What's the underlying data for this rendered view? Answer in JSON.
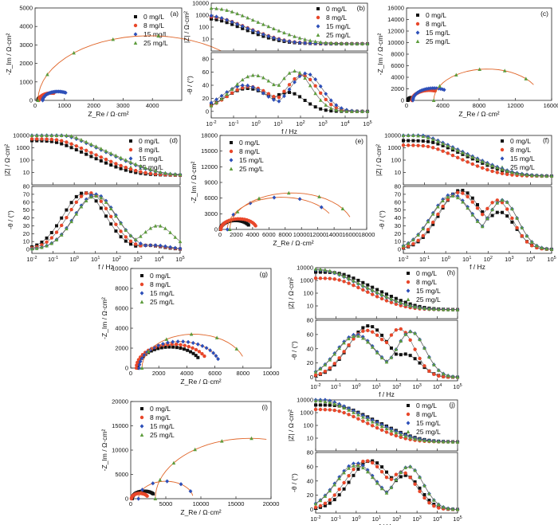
{
  "figure": {
    "legend_labels": [
      "0 mg/L",
      "8 mg/L",
      "15 mg/L",
      "25 mg/L"
    ],
    "series_colors": [
      "#111111",
      "#e8472a",
      "#2d4fb8",
      "#5d9c3c"
    ],
    "fit_color": "#e0662a"
  },
  "chart_data": [
    {
      "panel_label": "(a)",
      "type": "scatter",
      "xlabel": "Z_Re / Ω·cm²",
      "ylabel": "-Z_Im / Ω·cm²",
      "xlim": [
        0,
        5000
      ],
      "ylim": [
        0,
        5000
      ],
      "xticks": [
        0,
        1000,
        2000,
        3000,
        4000
      ],
      "yticks": [
        0,
        1000,
        2000,
        3000,
        4000,
        5000
      ],
      "legend_position": "top-right",
      "series": [
        {
          "name": "0 mg/L",
          "center": 350,
          "radius": 250,
          "end_angle_deg": 80
        },
        {
          "name": "8 mg/L",
          "center": 560,
          "radius": 430,
          "end_angle_deg": 100
        },
        {
          "name": "15 mg/L",
          "center": 780,
          "radius": 520,
          "end_angle_deg": 120
        },
        {
          "name": "25 mg/L",
          "center": 3900,
          "radius": 3800,
          "end_angle_deg": 130
        }
      ]
    },
    {
      "panel_label": "(b)",
      "type": "line",
      "xlabel": "f / Hz",
      "ylabel_top": "|Z| / Ω·cm²",
      "ylabel_bottom": "-θ / (°)",
      "xlim_log": [
        -2,
        5
      ],
      "zlim_log": [
        0,
        4
      ],
      "phase_lim": [
        -10,
        90
      ],
      "xticks_log": [
        -2,
        -1,
        0,
        1,
        2,
        3,
        4,
        5
      ],
      "zticks_log": [
        1,
        2,
        3,
        4
      ],
      "phase_ticks": [
        0,
        20,
        40,
        60,
        80
      ],
      "legend_position": "top-right",
      "series": [
        {
          "name": "0 mg/L",
          "Rs": 4,
          "Rp": 550,
          "f1": 0.4,
          "f2": 30,
          "p1": 35,
          "p2": 28
        },
        {
          "name": "8 mg/L",
          "Rs": 4,
          "Rp": 800,
          "f1": 0.5,
          "f2": 120,
          "p1": 38,
          "p2": 55
        },
        {
          "name": "15 mg/L",
          "Rs": 4,
          "Rp": 1100,
          "f1": 0.3,
          "f2": 180,
          "p1": 40,
          "p2": 58
        },
        {
          "name": "25 mg/L",
          "Rs": 4,
          "Rp": 4000,
          "f1": 0.8,
          "f2": 60,
          "p1": 55,
          "p2": 60
        }
      ]
    },
    {
      "panel_label": "(c)",
      "type": "scatter",
      "xlabel": "Z_Re / Ω·cm²",
      "ylabel": "-Z_Im / Ω·cm²",
      "xlim": [
        0,
        16000
      ],
      "ylim": [
        0,
        16000
      ],
      "xticks": [
        0,
        4000,
        8000,
        12000,
        16000
      ],
      "yticks": [
        0,
        2000,
        4000,
        6000,
        8000,
        10000,
        12000,
        14000,
        16000
      ],
      "legend_position": "top-left",
      "series": [
        {
          "name": "0 mg/L",
          "center": 700,
          "radius": 550,
          "end_angle_deg": 80
        },
        {
          "name": "8 mg/L",
          "center": 2500,
          "radius": 1900,
          "end_angle_deg": 110
        },
        {
          "name": "15 mg/L",
          "center": 3000,
          "radius": 2300,
          "end_angle_deg": 120
        },
        {
          "name": "25 mg/L",
          "center": 8900,
          "radius": 5900,
          "end_angle_deg": 150
        }
      ]
    },
    {
      "panel_label": "(d)",
      "type": "line",
      "xlabel": "f / Hz",
      "ylabel_top": "|Z| / Ω·cm²",
      "ylabel_bottom": "-θ / (°)",
      "xlim_log": [
        -2,
        5
      ],
      "zlim_log": [
        0,
        4
      ],
      "phase_lim": [
        -5,
        80
      ],
      "xticks_log": [
        -2,
        -1,
        0,
        1,
        2,
        3,
        4,
        5
      ],
      "zticks_log": [
        1,
        2,
        3,
        4
      ],
      "phase_ticks": [
        0,
        10,
        20,
        30,
        40,
        50,
        60,
        70,
        80
      ],
      "legend_position": "top-right",
      "series": [
        {
          "name": "0 mg/L",
          "Rs": 6,
          "Rp": 3800,
          "f1": 3,
          "f2": 3000,
          "p1": 72,
          "p2": 5
        },
        {
          "name": "8 mg/L",
          "Rs": 6,
          "Rp": 5200,
          "f1": 5,
          "f2": 4000,
          "p1": 72,
          "p2": 5
        },
        {
          "name": "15 mg/L",
          "Rs": 6,
          "Rp": 12000,
          "f1": 10,
          "f2": 6000,
          "p1": 70,
          "p2": 5
        },
        {
          "name": "25 mg/L",
          "Rs": 6,
          "Rp": 15000,
          "f1": 10,
          "f2": 9000,
          "p1": 68,
          "p2": 30
        }
      ]
    },
    {
      "panel_label": "(e)",
      "type": "scatter",
      "xlabel": "Z_Re / Ω·cm²",
      "ylabel": "-Z_Im / Ω·cm²",
      "xlim": [
        0,
        18000
      ],
      "ylim": [
        0,
        18000
      ],
      "xticks": [
        0,
        2000,
        4000,
        6000,
        8000,
        10000,
        12000,
        14000,
        16000,
        18000
      ],
      "yticks": [
        0,
        3000,
        6000,
        9000,
        12000,
        15000,
        18000
      ],
      "legend_position": "top-left",
      "series": [
        {
          "name": "0 mg/L",
          "center": 1900,
          "radius": 1850,
          "end_angle_deg": 150
        },
        {
          "name": "8 mg/L",
          "center": 2300,
          "radius": 2200,
          "end_angle_deg": 160
        },
        {
          "name": "15 mg/L",
          "center": 7600,
          "radius": 6700,
          "end_angle_deg": 150
        },
        {
          "name": "25 mg/L",
          "center": 8800,
          "radius": 7600,
          "end_angle_deg": 160
        }
      ]
    },
    {
      "panel_label": "(f)",
      "type": "line",
      "xlabel": "f / Hz",
      "ylabel_top": "|Z| / Ω·cm²",
      "ylabel_bottom": "-θ / (°)",
      "xlim_log": [
        -2,
        5
      ],
      "zlim_log": [
        0,
        4
      ],
      "phase_lim": [
        -5,
        80
      ],
      "xticks_log": [
        -2,
        -1,
        0,
        1,
        2,
        3,
        4,
        5
      ],
      "zticks_log": [
        1,
        2,
        3,
        4
      ],
      "phase_ticks": [
        0,
        10,
        20,
        30,
        40,
        50,
        60,
        70,
        80
      ],
      "legend_position": "top-right",
      "series": [
        {
          "name": "0 mg/L",
          "Rs": 5,
          "Rp": 3800,
          "f1": 5,
          "f2": 400,
          "p1": 75,
          "p2": 45
        },
        {
          "name": "8 mg/L",
          "Rs": 5,
          "Rp": 1600,
          "f1": 4,
          "f2": 300,
          "p1": 72,
          "p2": 60
        },
        {
          "name": "15 mg/L",
          "Rs": 5,
          "Rp": 13000,
          "f1": 2,
          "f2": 500,
          "p1": 70,
          "p2": 62
        },
        {
          "name": "25 mg/L",
          "Rs": 5,
          "Rp": 11000,
          "f1": 2,
          "f2": 500,
          "p1": 68,
          "p2": 62
        }
      ]
    },
    {
      "panel_label": "(g)",
      "type": "scatter",
      "xlabel": "Z_Re / Ω·cm²",
      "ylabel": "-Z_Im / Ω·cm²",
      "xlim": [
        0,
        10000
      ],
      "ylim": [
        0,
        10000
      ],
      "xticks": [
        0,
        2000,
        4000,
        6000,
        8000,
        10000
      ],
      "yticks": [
        0,
        2000,
        4000,
        6000,
        8000,
        10000
      ],
      "legend_position": "top-left",
      "series": [
        {
          "name": "0 mg/L",
          "center": 2800,
          "radius": 2300,
          "end_angle_deg": 150
        },
        {
          "name": "8 mg/L",
          "center": 3000,
          "radius": 2600,
          "end_angle_deg": 150
        },
        {
          "name": "15 mg/L",
          "center": 3500,
          "radius": 2900,
          "end_angle_deg": 160
        },
        {
          "name": "25 mg/L",
          "center": 4500,
          "radius": 3700,
          "end_angle_deg": 160
        }
      ]
    },
    {
      "panel_label": "(h)",
      "type": "line",
      "xlabel": "f / Hz",
      "ylabel_top": "|Z| / Ω·cm²",
      "ylabel_bottom": "-θ / (°)",
      "xlim_log": [
        -2,
        5
      ],
      "zlim_log": [
        0,
        4
      ],
      "phase_lim": [
        -5,
        80
      ],
      "xticks_log": [
        -2,
        -1,
        0,
        1,
        2,
        3,
        4,
        5
      ],
      "zticks_log": [
        1,
        2,
        3,
        4
      ],
      "phase_ticks": [
        0,
        20,
        40,
        60,
        80
      ],
      "legend_position": "top-right",
      "series": [
        {
          "name": "0 mg/L",
          "Rs": 5,
          "Rp": 4500,
          "f1": 4,
          "f2": 300,
          "p1": 72,
          "p2": 30
        },
        {
          "name": "8 mg/L",
          "Rs": 5,
          "Rp": 1500,
          "f1": 3,
          "f2": 150,
          "p1": 65,
          "p2": 65
        },
        {
          "name": "15 mg/L",
          "Rs": 5,
          "Rp": 7000,
          "f1": 1,
          "f2": 500,
          "p1": 60,
          "p2": 64
        },
        {
          "name": "25 mg/L",
          "Rs": 5,
          "Rp": 8000,
          "f1": 1,
          "f2": 500,
          "p1": 58,
          "p2": 64
        }
      ]
    },
    {
      "panel_label": "(i)",
      "type": "scatter",
      "xlabel": "Z_Re / Ω·cm²",
      "ylabel": "-Z_Im / Ω·cm²",
      "xlim": [
        0,
        20000
      ],
      "ylim": [
        0,
        20000
      ],
      "xticks": [
        0,
        5000,
        10000,
        15000,
        20000
      ],
      "yticks": [
        0,
        5000,
        10000,
        15000,
        20000
      ],
      "legend_position": "top-left",
      "series": [
        {
          "name": "0 mg/L",
          "center": 1900,
          "radius": 1700,
          "end_angle_deg": 140
        },
        {
          "name": "8 mg/L",
          "center": 1300,
          "radius": 1200,
          "end_angle_deg": 150
        },
        {
          "name": "15 mg/L",
          "center": 5000,
          "radius": 3900,
          "end_angle_deg": 170
        },
        {
          "name": "25 mg/L",
          "center": 17000,
          "radius": 13500,
          "end_angle_deg": 100
        }
      ]
    },
    {
      "panel_label": "(j)",
      "type": "line",
      "xlabel": "f / Hz",
      "ylabel_top": "|Z| / Ω·cm²",
      "ylabel_bottom": "-θ / (°)",
      "xlim_log": [
        -2,
        5
      ],
      "zlim_log": [
        0,
        4
      ],
      "phase_lim": [
        -5,
        80
      ],
      "xticks_log": [
        -2,
        -1,
        0,
        1,
        2,
        3,
        4,
        5
      ],
      "zticks_log": [
        1,
        2,
        3,
        4
      ],
      "phase_ticks": [
        0,
        20,
        40,
        60,
        80
      ],
      "legend_position": "top-right",
      "series": [
        {
          "name": "0 mg/L",
          "Rs": 5,
          "Rp": 4000,
          "f1": 5,
          "f2": 300,
          "p1": 68,
          "p2": 45
        },
        {
          "name": "8 mg/L",
          "Rs": 5,
          "Rp": 1800,
          "f1": 3,
          "f2": 200,
          "p1": 68,
          "p2": 50
        },
        {
          "name": "15 mg/L",
          "Rs": 5,
          "Rp": 12000,
          "f1": 1,
          "f2": 400,
          "p1": 65,
          "p2": 60
        },
        {
          "name": "25 mg/L",
          "Rs": 5,
          "Rp": 9000,
          "f1": 1,
          "f2": 400,
          "p1": 62,
          "p2": 60
        }
      ]
    }
  ]
}
